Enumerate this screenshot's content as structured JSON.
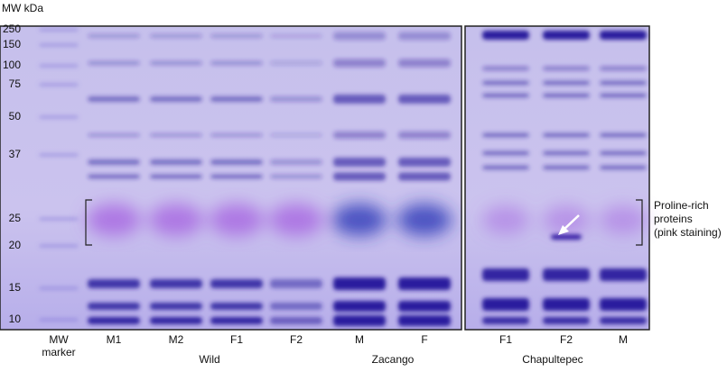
{
  "axis_title": "MW kDa",
  "mw_markers": [
    250,
    150,
    100,
    75,
    50,
    37,
    25,
    20,
    15,
    10
  ],
  "lanes": [
    [
      "MW",
      "marker"
    ],
    [
      "M1"
    ],
    [
      "M2"
    ],
    [
      "F1"
    ],
    [
      "F2"
    ],
    [
      "M"
    ],
    [
      "F"
    ],
    [
      "F1"
    ],
    [
      "F2"
    ],
    [
      "M"
    ]
  ],
  "groups": [
    "Wild",
    "Zacango",
    "Chapultepec"
  ],
  "annotation": [
    "Proline-rich",
    "proteins",
    "(pink staining)"
  ]
}
